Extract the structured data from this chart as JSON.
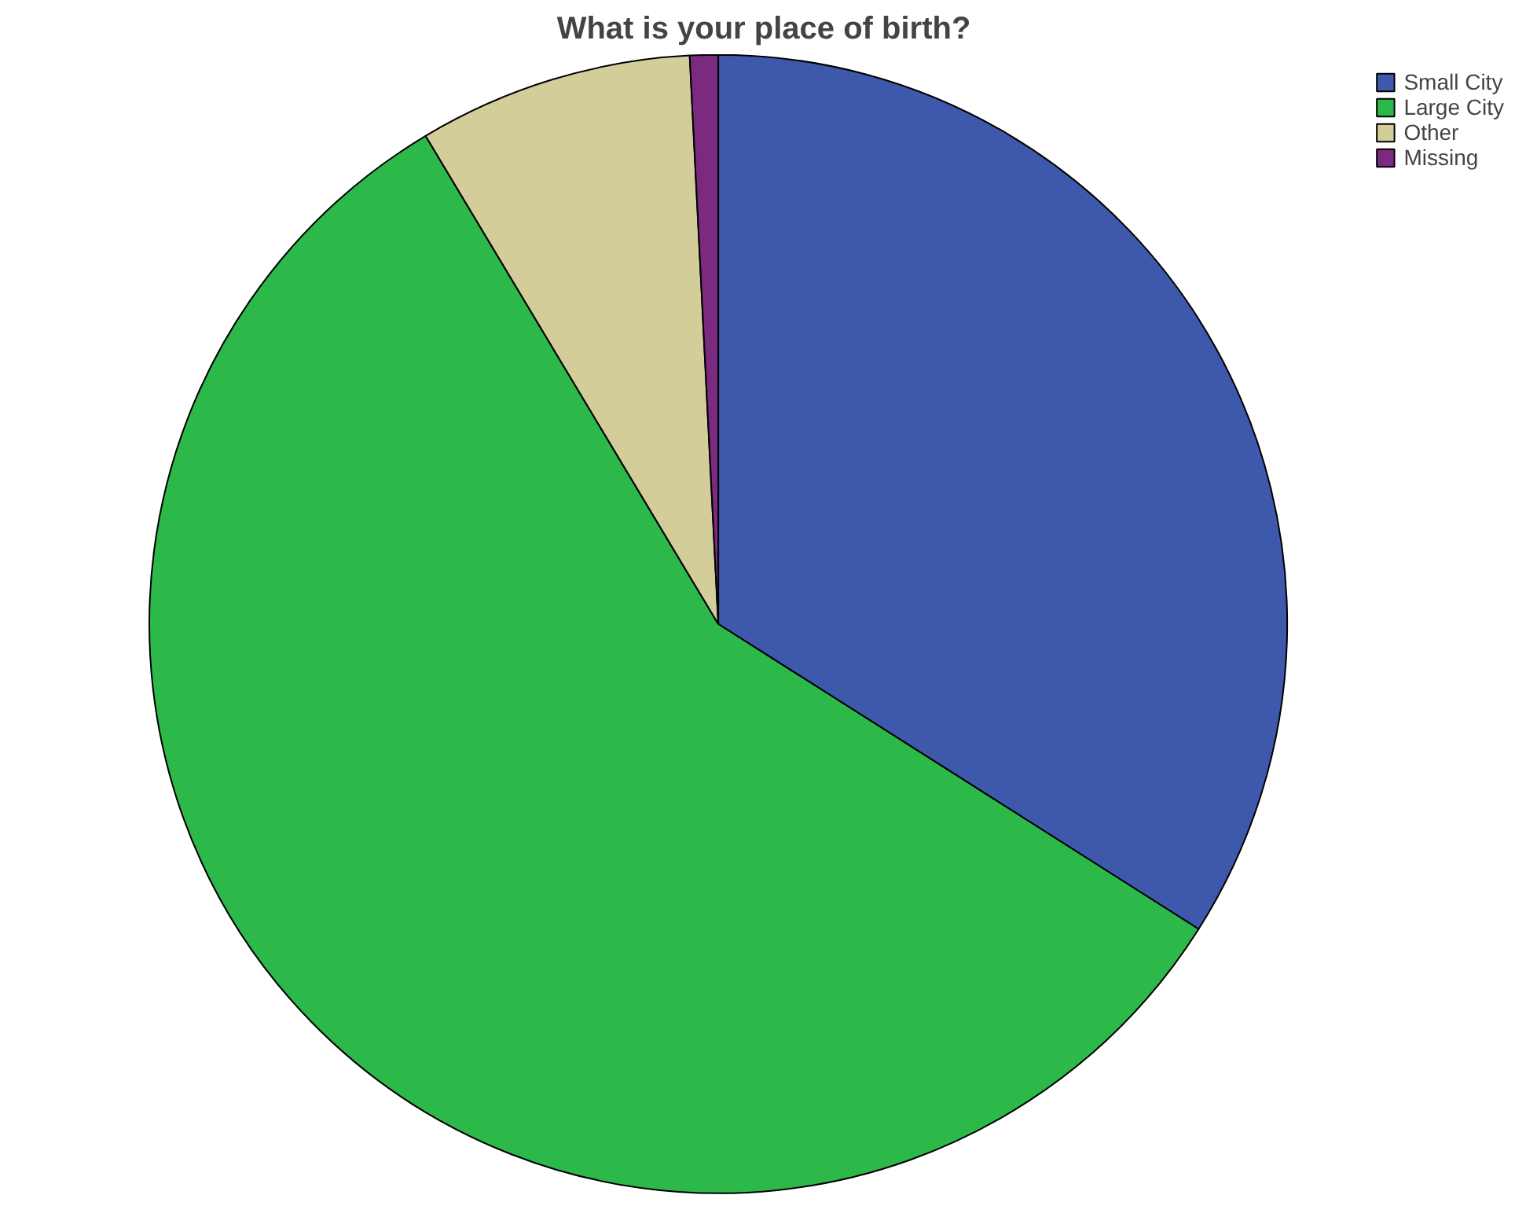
{
  "chart_data": {
    "type": "pie",
    "title": "What is your place of birth?",
    "categories": [
      "Small City",
      "Large City",
      "Other",
      "Missing"
    ],
    "values": [
      34.0,
      57.4,
      7.8,
      0.8
    ],
    "colors": [
      "#3e58ac",
      "#2db84a",
      "#d3cd9a",
      "#7b2a80"
    ],
    "legend": "top right"
  }
}
